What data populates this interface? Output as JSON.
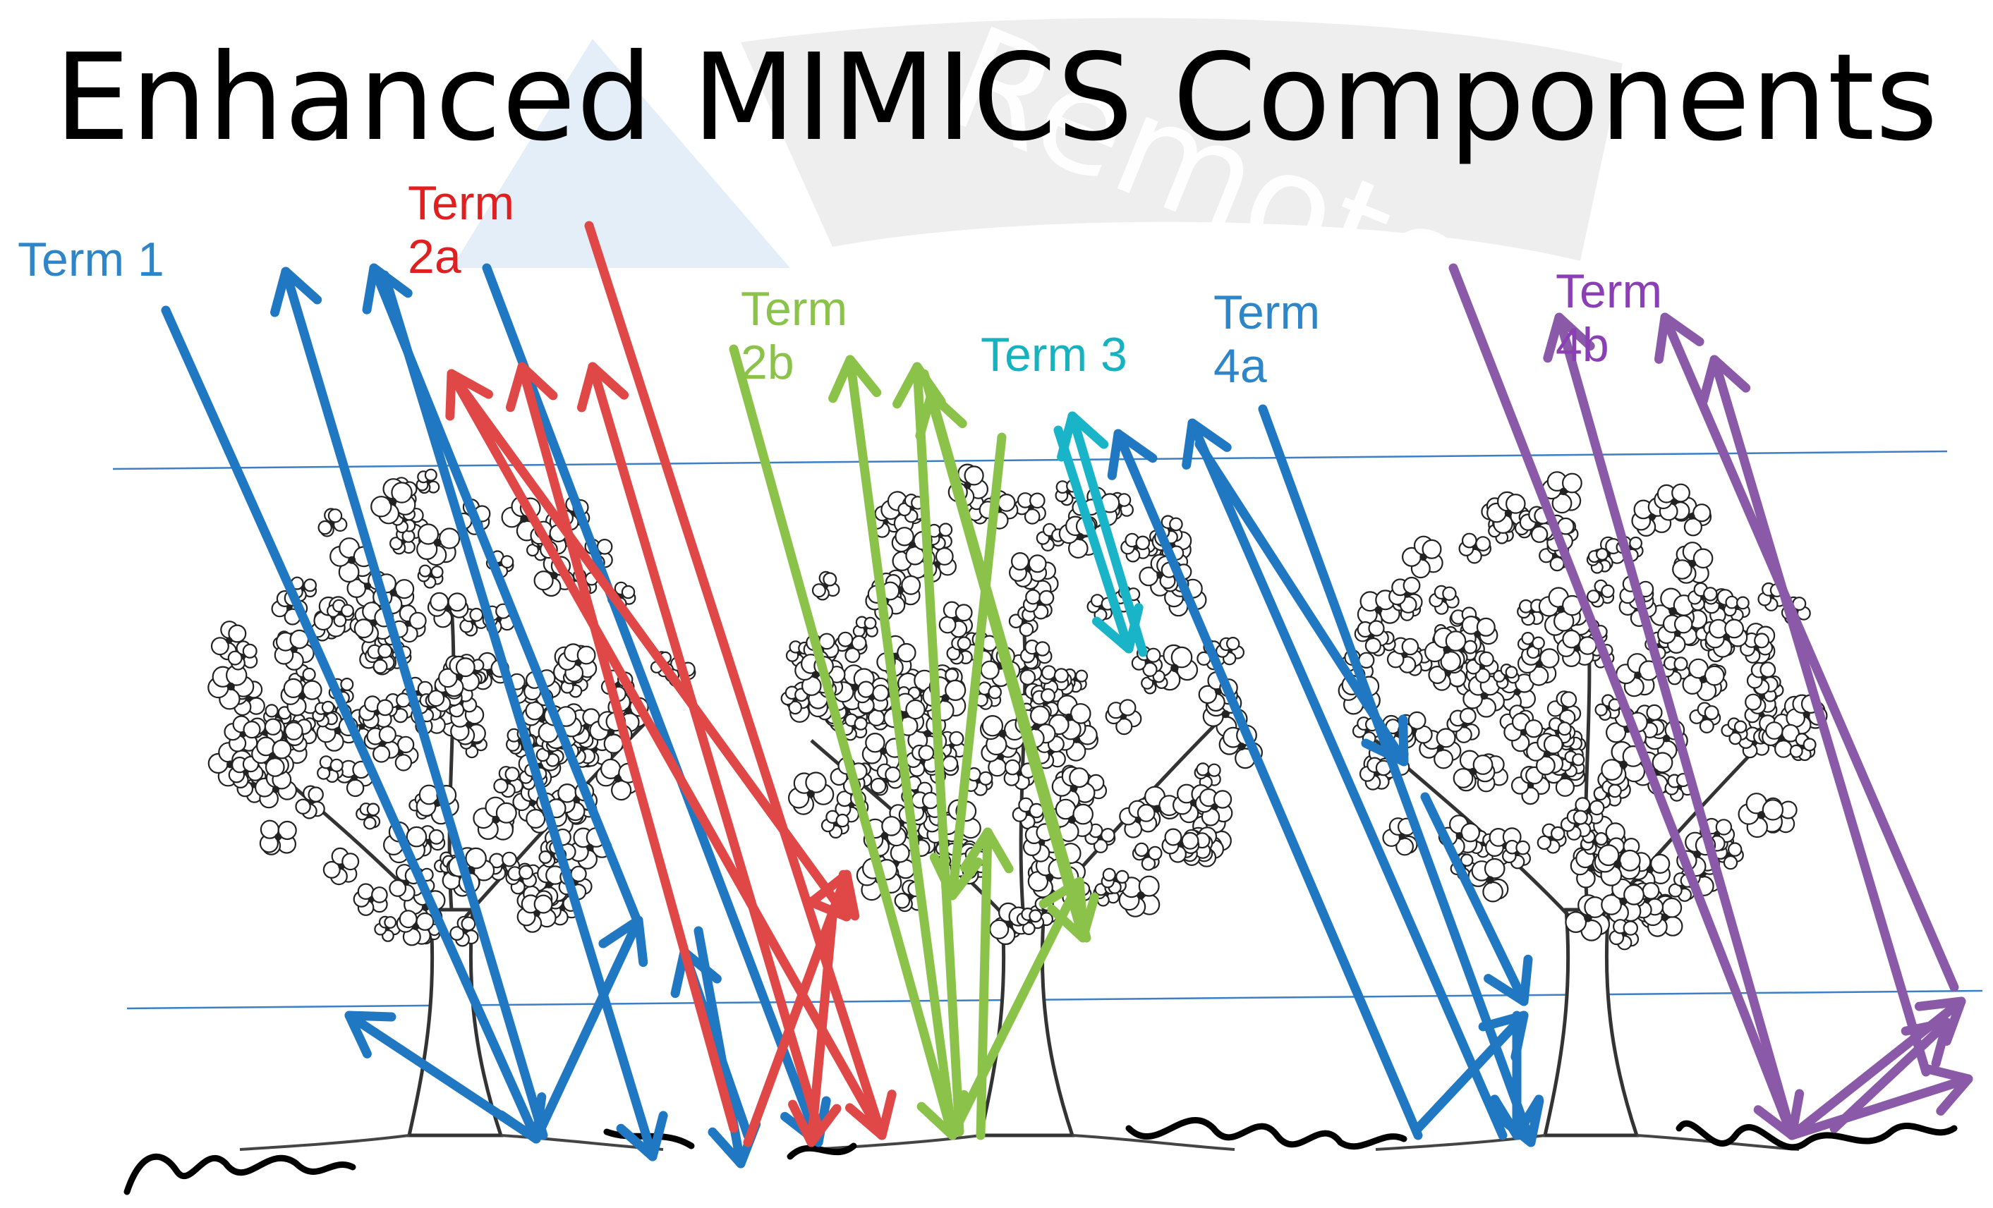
{
  "title": "Enhanced MIMICS Components",
  "watermark": "Remote",
  "terms": [
    {
      "id": "term1",
      "lines": [
        "Term 1"
      ],
      "color": "#2e86c9"
    },
    {
      "id": "term2a",
      "lines": [
        "Term",
        "2a"
      ],
      "color": "#e02020"
    },
    {
      "id": "term2b",
      "lines": [
        "Term",
        "2b"
      ],
      "color": "#8bc34a"
    },
    {
      "id": "term3",
      "lines": [
        "Term 3"
      ],
      "color": "#17b2bf"
    },
    {
      "id": "term4a",
      "lines": [
        "Term",
        "4a"
      ],
      "color": "#2e86c9"
    },
    {
      "id": "term4b",
      "lines": [
        "Term",
        "4b"
      ],
      "color": "#8a3fb5"
    }
  ],
  "arrow_colors": {
    "blue": "#1f78c1",
    "red": "#e04848",
    "green": "#8bc34a",
    "cyan": "#1ab4c8",
    "purple": "#8a5aa8"
  }
}
